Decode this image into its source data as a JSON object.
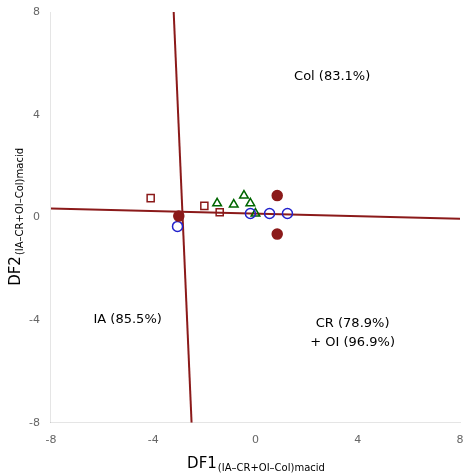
{
  "chart_data": {
    "type": "scatter",
    "xlabel": "DF1",
    "xlabel_sub": "(IA–CR+OI–Col)macid",
    "ylabel": "DF2",
    "ylabel_sub": "(IA–CR+OI–Col)macid",
    "xlim": [
      -8,
      8
    ],
    "ylim": [
      -8,
      8
    ],
    "xticks": [
      -8,
      -4,
      0,
      4,
      8
    ],
    "yticks": [
      -8,
      -4,
      0,
      4,
      8
    ],
    "grid": false,
    "background_color": "#ffffff",
    "series": [
      {
        "type": "line",
        "color": "#8B1A1A",
        "line_style": "solid",
        "x": [
          -3.2,
          -2.5
        ],
        "values": [
          8,
          -8
        ]
      },
      {
        "type": "line",
        "color": "#8B1A1A",
        "line_style": "solid",
        "x": [
          -8,
          8
        ],
        "values": [
          0.35,
          -0.05
        ]
      },
      {
        "type": "scatter",
        "color": "#8B1A1A",
        "marker": "filled_circle",
        "x": [
          -3.0,
          0.85,
          0.85
        ],
        "values": [
          0.05,
          0.85,
          -0.65
        ]
      },
      {
        "type": "scatter",
        "color": "#2222CC",
        "marker": "open_circle",
        "x": [
          -3.05,
          -0.2,
          0.55,
          1.25
        ],
        "values": [
          -0.35,
          0.15,
          0.15,
          0.15
        ]
      },
      {
        "type": "scatter",
        "color": "#006600",
        "marker": "open_triangle",
        "x": [
          -1.5,
          -0.85,
          -0.45,
          -0.2,
          0.0
        ],
        "values": [
          0.55,
          0.5,
          0.85,
          0.55,
          0.15
        ]
      },
      {
        "type": "scatter",
        "color": "#8B1A1A",
        "marker": "open_square",
        "x": [
          -4.1,
          -2.0,
          -1.4
        ],
        "values": [
          0.75,
          0.45,
          0.2
        ]
      }
    ],
    "annotations": [
      {
        "text": "Col (83.1%)",
        "x": 3.0,
        "y": 5.5
      },
      {
        "text": "IA (85.5%)",
        "x": -5.0,
        "y": -4.0
      },
      {
        "text": "CR (78.9%)\n+ OI (96.9%)",
        "x": 3.8,
        "y": -4.5
      }
    ],
    "legend": false
  }
}
